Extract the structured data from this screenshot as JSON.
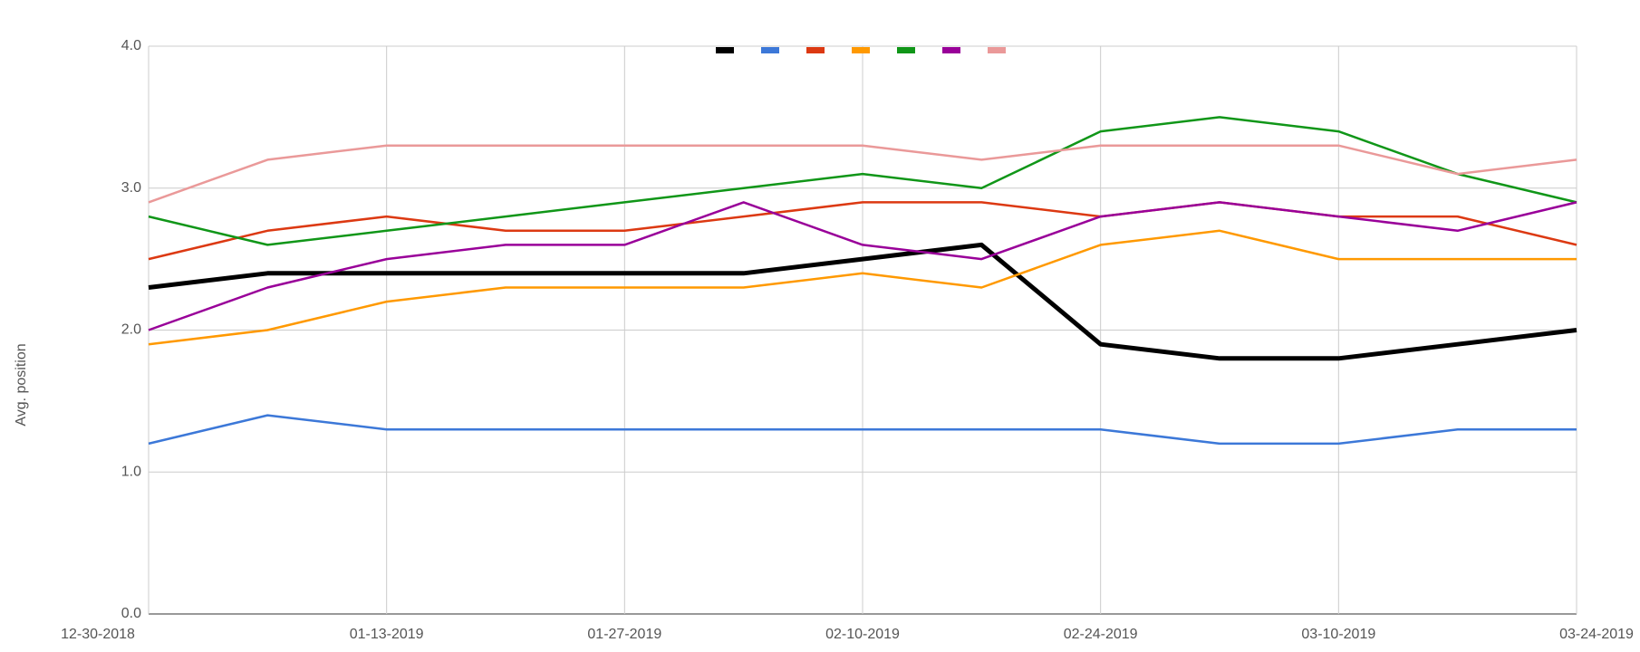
{
  "chart_data": {
    "type": "line",
    "y_label": "Avg. position",
    "categories": [
      "12-30-2018",
      null,
      "01-13-2019",
      null,
      "01-27-2019",
      null,
      "02-10-2019",
      null,
      "02-24-2019",
      null,
      "03-10-2019",
      null,
      "03-24-2019"
    ],
    "ylim": [
      0,
      4
    ],
    "yticks": [
      {
        "value": 0,
        "label": "0.0"
      },
      {
        "value": 1,
        "label": "1.0"
      },
      {
        "value": 2,
        "label": "2.0"
      },
      {
        "value": 3,
        "label": "3.0"
      },
      {
        "value": 4,
        "label": "4.0"
      }
    ],
    "grid": true,
    "legend": "top",
    "series": [
      {
        "color": "#000000",
        "values": [
          2.3,
          2.4,
          2.4,
          2.4,
          2.4,
          2.4,
          2.5,
          2.6,
          1.9,
          1.8,
          1.8,
          1.9,
          2.0
        ]
      },
      {
        "color": "#3c78d8",
        "values": [
          1.2,
          1.4,
          1.3,
          1.3,
          1.3,
          1.3,
          1.3,
          1.3,
          1.3,
          1.2,
          1.2,
          1.3,
          1.3
        ]
      },
      {
        "color": "#dc3912",
        "values": [
          2.5,
          2.7,
          2.8,
          2.7,
          2.7,
          2.8,
          2.9,
          2.9,
          2.8,
          2.9,
          2.8,
          2.8,
          2.6
        ]
      },
      {
        "color": "#ff9900",
        "values": [
          1.9,
          2.0,
          2.2,
          2.3,
          2.3,
          2.3,
          2.4,
          2.3,
          2.6,
          2.7,
          2.5,
          2.5,
          2.5
        ]
      },
      {
        "color": "#109618",
        "values": [
          2.8,
          2.6,
          2.7,
          2.8,
          2.9,
          3.0,
          3.1,
          3.0,
          3.4,
          3.5,
          3.4,
          3.1,
          2.9
        ]
      },
      {
        "color": "#990099",
        "values": [
          2.0,
          2.3,
          2.5,
          2.6,
          2.6,
          2.9,
          2.6,
          2.5,
          2.8,
          2.9,
          2.8,
          2.7,
          2.9
        ]
      },
      {
        "color": "#ea9999",
        "values": [
          2.9,
          3.2,
          3.3,
          3.3,
          3.3,
          3.3,
          3.3,
          3.2,
          3.3,
          3.3,
          3.3,
          3.1,
          3.2
        ]
      }
    ]
  }
}
